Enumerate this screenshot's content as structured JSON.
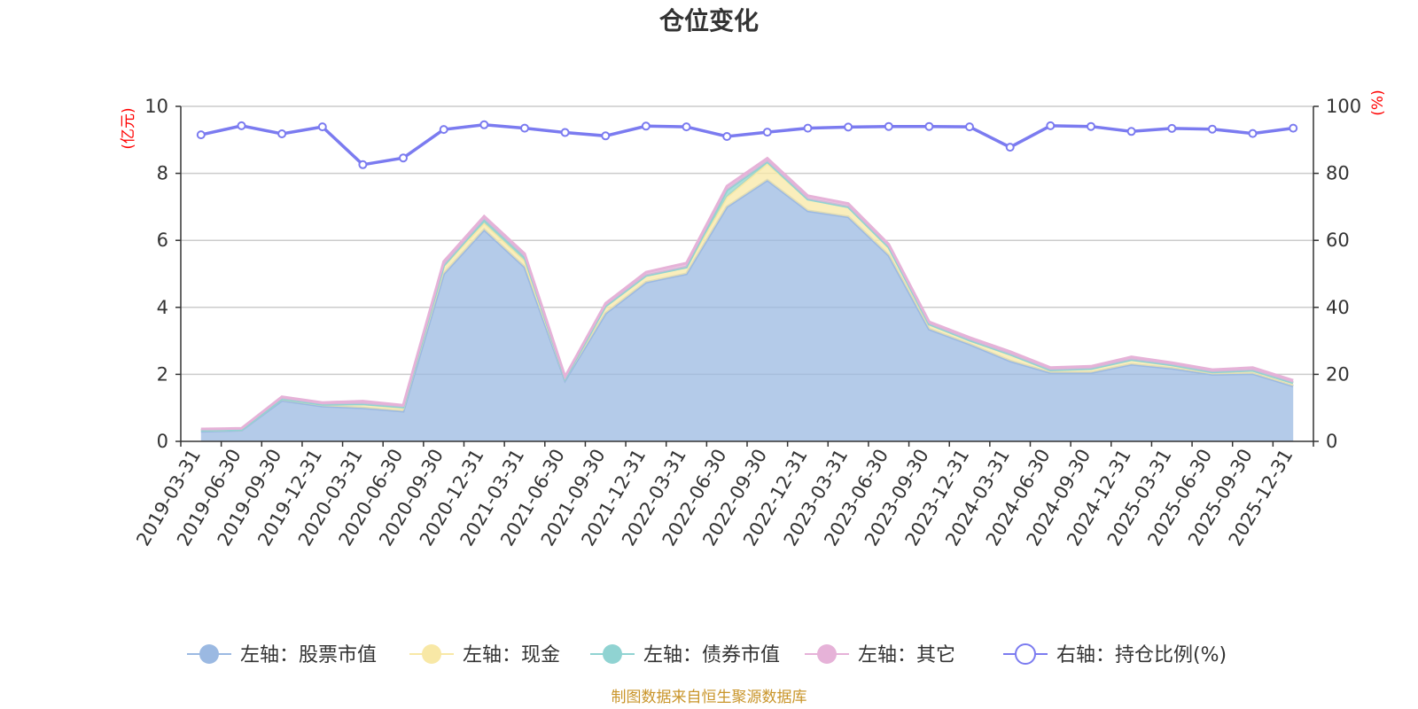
{
  "chart_data": {
    "type": "area",
    "title": "仓位变化",
    "left_unit": "(亿元)",
    "right_unit": "(%)",
    "source": "制图数据来自恒生聚源数据库",
    "categories": [
      "2019-03-31",
      "2019-06-30",
      "2019-09-30",
      "2019-12-31",
      "2020-03-31",
      "2020-06-30",
      "2020-09-30",
      "2020-12-31",
      "2021-03-31",
      "2021-06-30",
      "2021-09-30",
      "2021-12-31",
      "2022-03-31",
      "2022-06-30",
      "2022-09-30",
      "2022-12-31",
      "2023-03-31",
      "2023-06-30",
      "2023-09-30",
      "2023-12-31",
      "2024-03-31",
      "2024-06-30",
      "2024-09-30",
      "2024-12-31",
      "2025-03-31",
      "2025-06-30",
      "2025-09-30",
      "2025-12-31"
    ],
    "y_left": {
      "min": 0,
      "max": 10,
      "ticks": [
        0,
        2,
        4,
        6,
        8,
        10
      ]
    },
    "y_right": {
      "min": 0,
      "max": 100,
      "ticks": [
        0,
        20,
        40,
        60,
        80,
        100
      ]
    },
    "grid": "horizontal",
    "legend_position": "bottom",
    "series": [
      {
        "name": "左轴：股票市值",
        "axis": "left",
        "stack": true,
        "color": "#9bb9e2",
        "values": [
          0.3,
          0.33,
          1.22,
          1.05,
          1.0,
          0.9,
          5.0,
          6.32,
          5.2,
          1.82,
          3.82,
          4.75,
          5.0,
          7.0,
          7.8,
          6.88,
          6.7,
          5.55,
          3.35,
          2.9,
          2.4,
          2.05,
          2.05,
          2.3,
          2.18,
          2.0,
          2.02,
          1.65
        ]
      },
      {
        "name": "左轴：现金",
        "axis": "left",
        "stack": true,
        "color": "#f8e8a6",
        "values": [
          0.03,
          0.02,
          0.05,
          0.05,
          0.12,
          0.1,
          0.25,
          0.2,
          0.2,
          0.06,
          0.22,
          0.2,
          0.2,
          0.3,
          0.5,
          0.35,
          0.3,
          0.25,
          0.15,
          0.12,
          0.2,
          0.08,
          0.12,
          0.14,
          0.1,
          0.07,
          0.1,
          0.1
        ]
      },
      {
        "name": "左轴：债券市值",
        "axis": "left",
        "stack": true,
        "color": "#90d3d2",
        "values": [
          0,
          0,
          0,
          0,
          0,
          0.02,
          0,
          0.1,
          0.1,
          0,
          0,
          0,
          0,
          0.2,
          0.05,
          0,
          0,
          0,
          0,
          0,
          0,
          0,
          0,
          0,
          0,
          0,
          0,
          0
        ]
      },
      {
        "name": "左轴：其它",
        "axis": "left",
        "stack": true,
        "color": "#e6b2d8",
        "values": [
          0.04,
          0.04,
          0.06,
          0.06,
          0.08,
          0.06,
          0.12,
          0.1,
          0.1,
          0.05,
          0.08,
          0.1,
          0.12,
          0.12,
          0.1,
          0.1,
          0.1,
          0.08,
          0.07,
          0.08,
          0.08,
          0.07,
          0.07,
          0.08,
          0.07,
          0.07,
          0.08,
          0.07
        ]
      },
      {
        "name": "右轴：持仓比例(%)",
        "axis": "right",
        "type": "line",
        "color": "#7b7bf0",
        "values": [
          91.5,
          94.2,
          91.8,
          93.9,
          82.6,
          84.6,
          93.1,
          94.5,
          93.5,
          92.2,
          91.2,
          94.1,
          93.9,
          91.0,
          92.3,
          93.5,
          93.8,
          94.0,
          94.0,
          93.9,
          87.8,
          94.2,
          94.0,
          92.5,
          93.4,
          93.2,
          91.9,
          93.5
        ]
      }
    ]
  }
}
